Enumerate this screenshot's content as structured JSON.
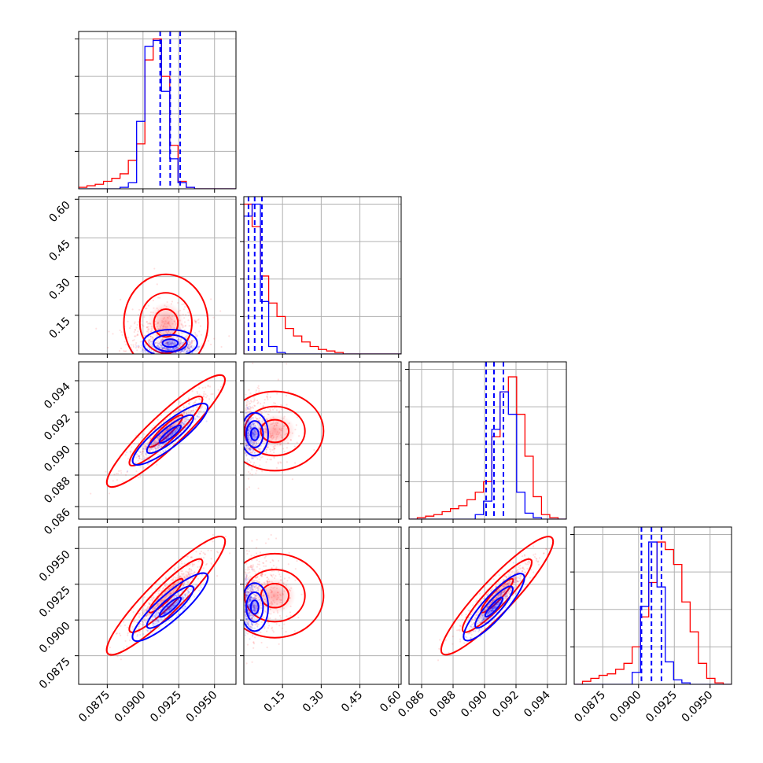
{
  "colors": {
    "series_a": "#0000ff",
    "series_b": "#ff0000",
    "grid": "#b0b0b0",
    "frame": "#000000"
  },
  "chart_data": {
    "type": "corner",
    "grid": true,
    "parameters": [
      {
        "range": [
          0.0855,
          0.0965
        ],
        "ticks": [
          0.0875,
          0.09,
          0.0925,
          0.095
        ],
        "tick_labels": [
          "0.0875",
          "0.0900",
          "0.0925",
          "0.0950"
        ]
      },
      {
        "range": [
          0.0,
          0.61
        ],
        "ticks": [
          0.15,
          0.3,
          0.45,
          0.6
        ],
        "tick_labels": [
          "0.15",
          "0.30",
          "0.45",
          "0.60"
        ]
      },
      {
        "range": [
          0.0852,
          0.0952
        ],
        "ticks": [
          0.086,
          0.088,
          0.09,
          0.092,
          0.094
        ],
        "tick_labels": [
          "0.086",
          "0.088",
          "0.090",
          "0.092",
          "0.094"
        ]
      },
      {
        "range": [
          0.0855,
          0.0965
        ],
        "ticks": [
          0.0875,
          0.09,
          0.0925,
          0.095
        ],
        "tick_labels": [
          "0.0875",
          "0.0900",
          "0.0925",
          "0.0950"
        ]
      }
    ],
    "series": [
      {
        "color": "#0000ff",
        "quantiles": [
          [
            0.0912,
            0.0919,
            0.0926
          ],
          [
            0.018,
            0.042,
            0.07
          ],
          [
            0.0901,
            0.0906,
            0.0912
          ],
          [
            0.0902,
            0.0909,
            0.0916
          ]
        ],
        "histograms": [
          [
            0,
            0,
            0,
            0,
            0,
            1,
            4,
            45,
            95,
            99,
            65,
            20,
            4,
            1,
            0,
            0,
            0,
            0,
            0
          ],
          [
            92,
            100,
            35,
            5,
            1,
            0,
            0,
            0,
            0,
            0,
            0,
            0,
            0,
            0,
            0,
            0,
            0,
            0,
            0
          ],
          [
            0,
            0,
            0,
            0,
            0,
            0,
            0,
            0,
            3,
            12,
            60,
            85,
            70,
            18,
            4,
            1,
            0,
            0,
            0
          ],
          [
            0,
            0,
            0,
            0,
            0,
            0,
            0,
            8,
            52,
            95,
            65,
            15,
            3,
            1,
            0,
            0,
            0,
            0,
            0
          ]
        ],
        "centers": [
          [
            0.0919,
            0.042,
            0.0906,
            0.0909
          ]
        ]
      },
      {
        "color": "#ff0000",
        "quantiles": [],
        "histograms": [
          [
            1,
            2,
            3,
            5,
            7,
            10,
            19,
            30,
            86,
            100,
            75,
            29,
            5,
            1,
            0,
            0,
            0,
            0,
            0
          ],
          [
            100,
            85,
            52,
            34,
            25,
            17,
            12,
            8,
            5,
            3,
            2,
            1,
            0,
            0,
            0,
            0,
            0,
            0,
            0
          ],
          [
            0,
            1,
            2,
            3,
            5,
            7,
            9,
            13,
            18,
            25,
            55,
            85,
            95,
            70,
            42,
            15,
            3,
            1,
            0
          ],
          [
            0,
            2,
            4,
            6,
            7,
            10,
            14,
            25,
            45,
            68,
            95,
            90,
            80,
            55,
            35,
            14,
            4,
            1,
            0
          ]
        ],
        "centers": [
          [
            0.0916,
            0.12,
            0.0908,
            0.0917
          ]
        ]
      }
    ]
  }
}
